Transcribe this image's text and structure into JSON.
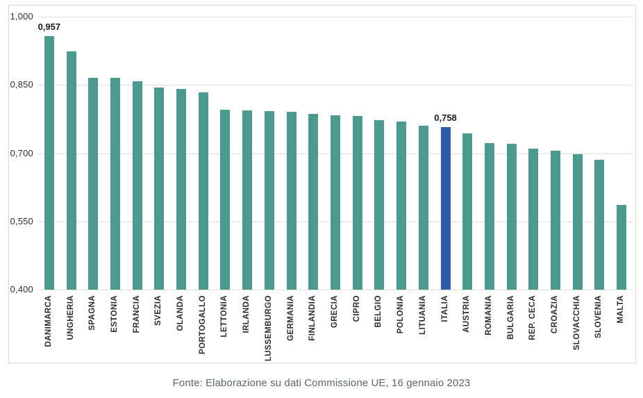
{
  "chart_data": {
    "type": "bar",
    "categories": [
      "DANIMARCA",
      "UNGHERIA",
      "SPAGNA",
      "ESTONIA",
      "FRANCIA",
      "SVEZIA",
      "OLANDA",
      "PORTOGALLO",
      "LETTONIA",
      "IRLANDA",
      "LUSSEMBURGO",
      "GERMANIA",
      "FINLANDIA",
      "GRECIA",
      "CIPRO",
      "BELGIO",
      "POLONIA",
      "LITUANIA",
      "ITALIA",
      "AUSTRIA",
      "ROMANIA",
      "BULGARIA",
      "REP. CECA",
      "CROAZIA",
      "SLOVACCHIA",
      "SLOVENIA",
      "MALTA"
    ],
    "values": [
      0.957,
      0.924,
      0.866,
      0.865,
      0.858,
      0.845,
      0.841,
      0.834,
      0.796,
      0.794,
      0.793,
      0.791,
      0.786,
      0.783,
      0.781,
      0.773,
      0.77,
      0.761,
      0.758,
      0.744,
      0.722,
      0.721,
      0.71,
      0.705,
      0.698,
      0.686,
      0.586
    ],
    "data_labels": {
      "DANIMARCA": "0,957",
      "ITALIA": "0,758"
    },
    "highlight_category": "ITALIA",
    "bar_color": "#4a9b8e",
    "highlight_color": "#2b5ca9",
    "ylim": [
      0.4,
      1.0
    ],
    "yticks": [
      1.0,
      0.85,
      0.7,
      0.55,
      0.4
    ],
    "ytick_labels": [
      "1,000",
      "0,850",
      "0,700",
      "0,550",
      "0,400"
    ],
    "grid": true,
    "legend": "none",
    "title": "",
    "xlabel": "",
    "ylabel": ""
  },
  "footer": {
    "source_label": "Fonte: Elaborazione su dati Commissione UE, 16 gennaio 2023"
  }
}
